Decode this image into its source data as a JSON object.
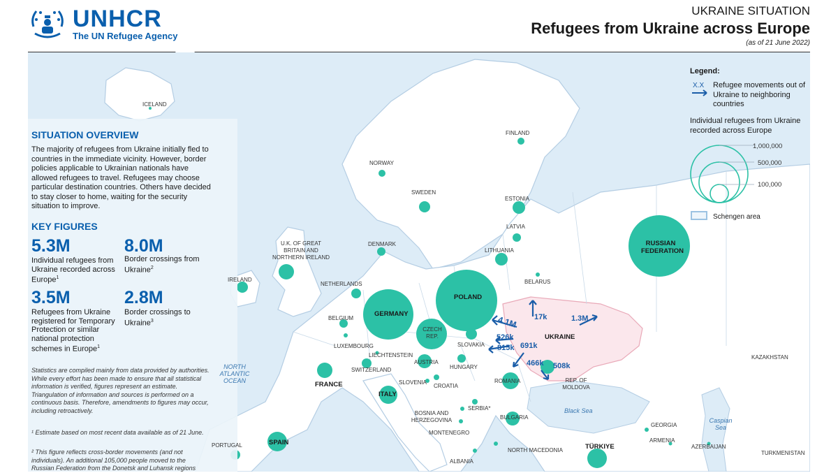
{
  "header": {
    "org_name": "UNHCR",
    "org_sub": "The UN Refugee Agency",
    "kicker": "UKRAINE SITUATION",
    "title": "Refugees from Ukraine across Europe",
    "date": "(as of 21 June 2022)"
  },
  "overview": {
    "title": "SITUATION OVERVIEW",
    "text": "The majority of refugees from Ukraine initially fled to countries in the immediate vicinity. However, border policies applicable to Ukrainian nationals have allowed refugees to travel. Refugees may choose particular destination countries. Others have decided to stay closer to home, waiting for the security situation to improve."
  },
  "key_figures": {
    "title": "KEY FIGURES",
    "items": [
      {
        "value": "5.3M",
        "desc": "Individual refugees from Ukraine recorded across Europe",
        "note": "1"
      },
      {
        "value": "8.0M",
        "desc": "Border crossings from Ukraine",
        "note": "2"
      },
      {
        "value": "3.5M",
        "desc": "Refugees from Ukraine registered for Temporary Protection or similar national protection schemes in Europe",
        "note": "1"
      },
      {
        "value": "2.8M",
        "desc": "Border crossings to Ukraine",
        "note": "3"
      }
    ]
  },
  "notes": {
    "stats": "Statistics are compiled mainly from data provided by authorities. While every effort has been made to ensure that all statistical information is verified, figures represent an estimate. Triangulation of information and sources is performed on a continuous basis. Therefore, amendments to figures may occur, including retroactively.",
    "n1": "¹ Estimate based on most recent data available as of 21 June.",
    "n2": "² This figure reflects cross-border movements (and not individuals). An additional 105,000 people moved to the Russian Federation from the Donetsk and Luhansk regions"
  },
  "legend": {
    "title": "Legend:",
    "arrow_label": "X.X",
    "arrow_text": "Refugee movements out of Ukraine to neighboring countries",
    "circles_text": "Individual refugees from Ukraine recorded across Europe",
    "scale": [
      "1,000,000",
      "500,000",
      "100,000"
    ],
    "schengen": "Schengen area"
  },
  "map": {
    "countries": {
      "iceland": "ICELAND",
      "norway": "NORWAY",
      "sweden": "SWEDEN",
      "finland": "FINLAND",
      "estonia": "ESTONIA",
      "latvia": "LATVIA",
      "lithuania": "LITHUANIA",
      "denmark": "DENMARK",
      "uk": "U.K. OF GREAT BRITAIN AND NORTHERN IRELAND",
      "ireland": "IRELAND",
      "netherlands": "NETHERLANDS",
      "belgium": "BELGIUM",
      "luxembourg": "LUXEMBOURG",
      "germany": "GERMANY",
      "poland": "POLAND",
      "belarus": "BELARUS",
      "russia": "RUSSIAN FEDERATION",
      "czech": "CZECH REP.",
      "slovakia": "SLOVAKIA",
      "liechtenstein": "LIECHTENSTEIN",
      "austria": "AUSTRIA",
      "hungary": "HUNGARY",
      "switzerland": "SWITZERLAND",
      "france": "FRANCE",
      "slovenia": "SLOVENIA",
      "croatia": "CROATIA",
      "romania": "ROMANIA",
      "moldova": "REP. OF MOLDOVA",
      "ukraine": "UKRAINE",
      "italy": "ITALY",
      "serbia": "SERBIA*",
      "bosnia": "BOSNIA AND HERZEGOVINA",
      "bulgaria": "BULGARIA",
      "montenegro": "MONTENEGRO",
      "north_macedonia": "NORTH MACEDONIA",
      "albania": "ALBANIA",
      "portugal": "PORTUGAL",
      "spain": "SPAIN",
      "turkiye": "TÜRKIYE",
      "georgia": "GEORGIA",
      "armenia": "ARMENIA",
      "azerbaijan": "AZERBAIJAN",
      "kazakhstan": "KAZAKHSTAN",
      "turkmenistan": "TURKMENISTAN"
    },
    "seas": {
      "atlantic": "NORTH ATLANTIC OCEAN",
      "black": "Black Sea",
      "caspian": "Caspian Sea"
    },
    "flows": {
      "poland": "4.1M",
      "slovakia": "526k",
      "hungary": "815k",
      "romania": "691k",
      "moldova_a": "466k",
      "moldova_b": "508k",
      "belarus": "17k",
      "russia": "1.3M"
    }
  },
  "colors": {
    "brand": "#0a5fad",
    "bubble": "#2cc1a6",
    "sea": "#ddecf7",
    "land": "#ffffff",
    "ukraine": "#fbe7ec",
    "flow": "#1a5da8"
  }
}
